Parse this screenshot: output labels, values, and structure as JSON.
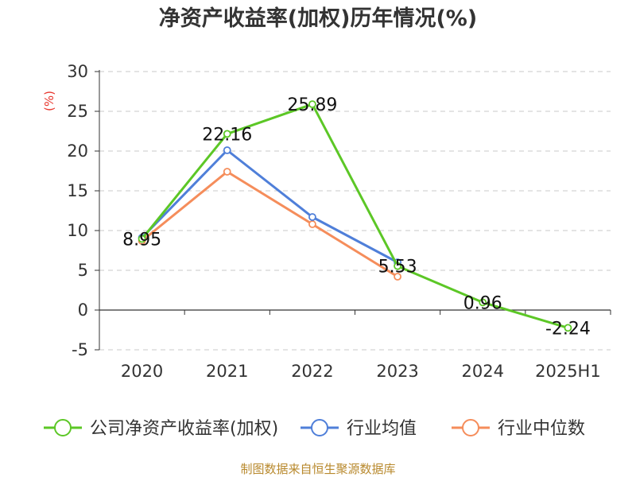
{
  "chart_data": {
    "type": "line",
    "title": "净资产收益率(加权)历年情况(%)",
    "ylabel": "(%)",
    "categories": [
      "2020",
      "2021",
      "2022",
      "2023",
      "2024",
      "2025H1"
    ],
    "ylim": [
      -5,
      30
    ],
    "yticks": [
      "30",
      "25",
      "20",
      "15",
      "10",
      "5",
      "0",
      "-5"
    ],
    "grid": true,
    "legend_position": "bottom",
    "series": [
      {
        "name": "公司净资产收益率(加权)",
        "color": "#5cc726",
        "values": [
          8.95,
          22.16,
          25.89,
          5.53,
          0.96,
          -2.24
        ],
        "labels": [
          "8.95",
          "22.16",
          "25.89",
          "5.53",
          "0.96",
          "-2.24"
        ]
      },
      {
        "name": "行业均值",
        "color": "#4f7fd9",
        "values": [
          9.1,
          20.1,
          11.7,
          6.0,
          null,
          null
        ]
      },
      {
        "name": "行业中位数",
        "color": "#f58d5b",
        "values": [
          8.7,
          17.4,
          10.8,
          4.2,
          null,
          null
        ]
      }
    ]
  },
  "source": "制图数据来自恒生聚源数据库"
}
